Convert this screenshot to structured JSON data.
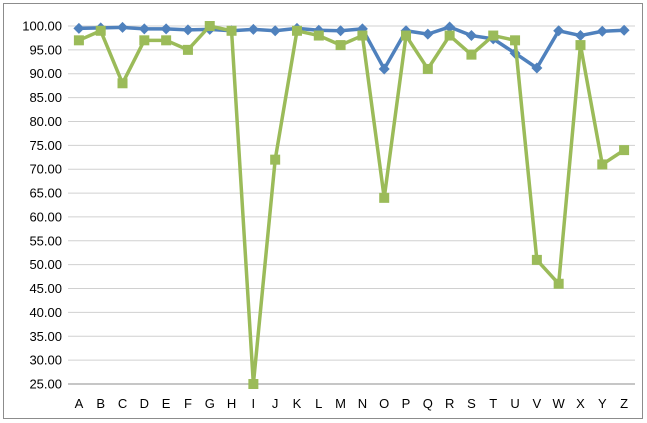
{
  "chart_data": {
    "type": "line",
    "title": "",
    "xlabel": "",
    "ylabel": "",
    "categories": [
      "A",
      "B",
      "C",
      "D",
      "E",
      "F",
      "G",
      "H",
      "I",
      "J",
      "K",
      "L",
      "M",
      "N",
      "O",
      "P",
      "Q",
      "R",
      "S",
      "T",
      "U",
      "V",
      "W",
      "X",
      "Y",
      "Z"
    ],
    "ylim": [
      25,
      100
    ],
    "yticks": [
      "25.00",
      "30.00",
      "35.00",
      "40.00",
      "45.00",
      "50.00",
      "55.00",
      "60.00",
      "65.00",
      "70.00",
      "75.00",
      "80.00",
      "85.00",
      "90.00",
      "95.00",
      "100.00"
    ],
    "grid": true,
    "legend": "none",
    "series": [
      {
        "color": "#4F81BD",
        "marker": "diamond",
        "values": [
          99.5,
          99.6,
          99.7,
          99.4,
          99.4,
          99.2,
          99.3,
          99.0,
          99.3,
          99.0,
          99.5,
          99.1,
          99.0,
          99.4,
          91.0,
          99.0,
          98.3,
          99.8,
          98.0,
          97.3,
          94.3,
          91.2,
          99.0,
          98.0,
          98.9,
          99.1
        ]
      },
      {
        "color": "#9BBB59",
        "marker": "square",
        "values": [
          97.0,
          99.0,
          88.0,
          97.0,
          97.0,
          95.0,
          100.0,
          99.0,
          25.0,
          72.0,
          99.0,
          98.0,
          96.0,
          98.0,
          64.0,
          98.0,
          91.0,
          98.0,
          94.0,
          98.0,
          97.0,
          51.0,
          46.0,
          96.0,
          71.0,
          74.0
        ]
      }
    ]
  }
}
